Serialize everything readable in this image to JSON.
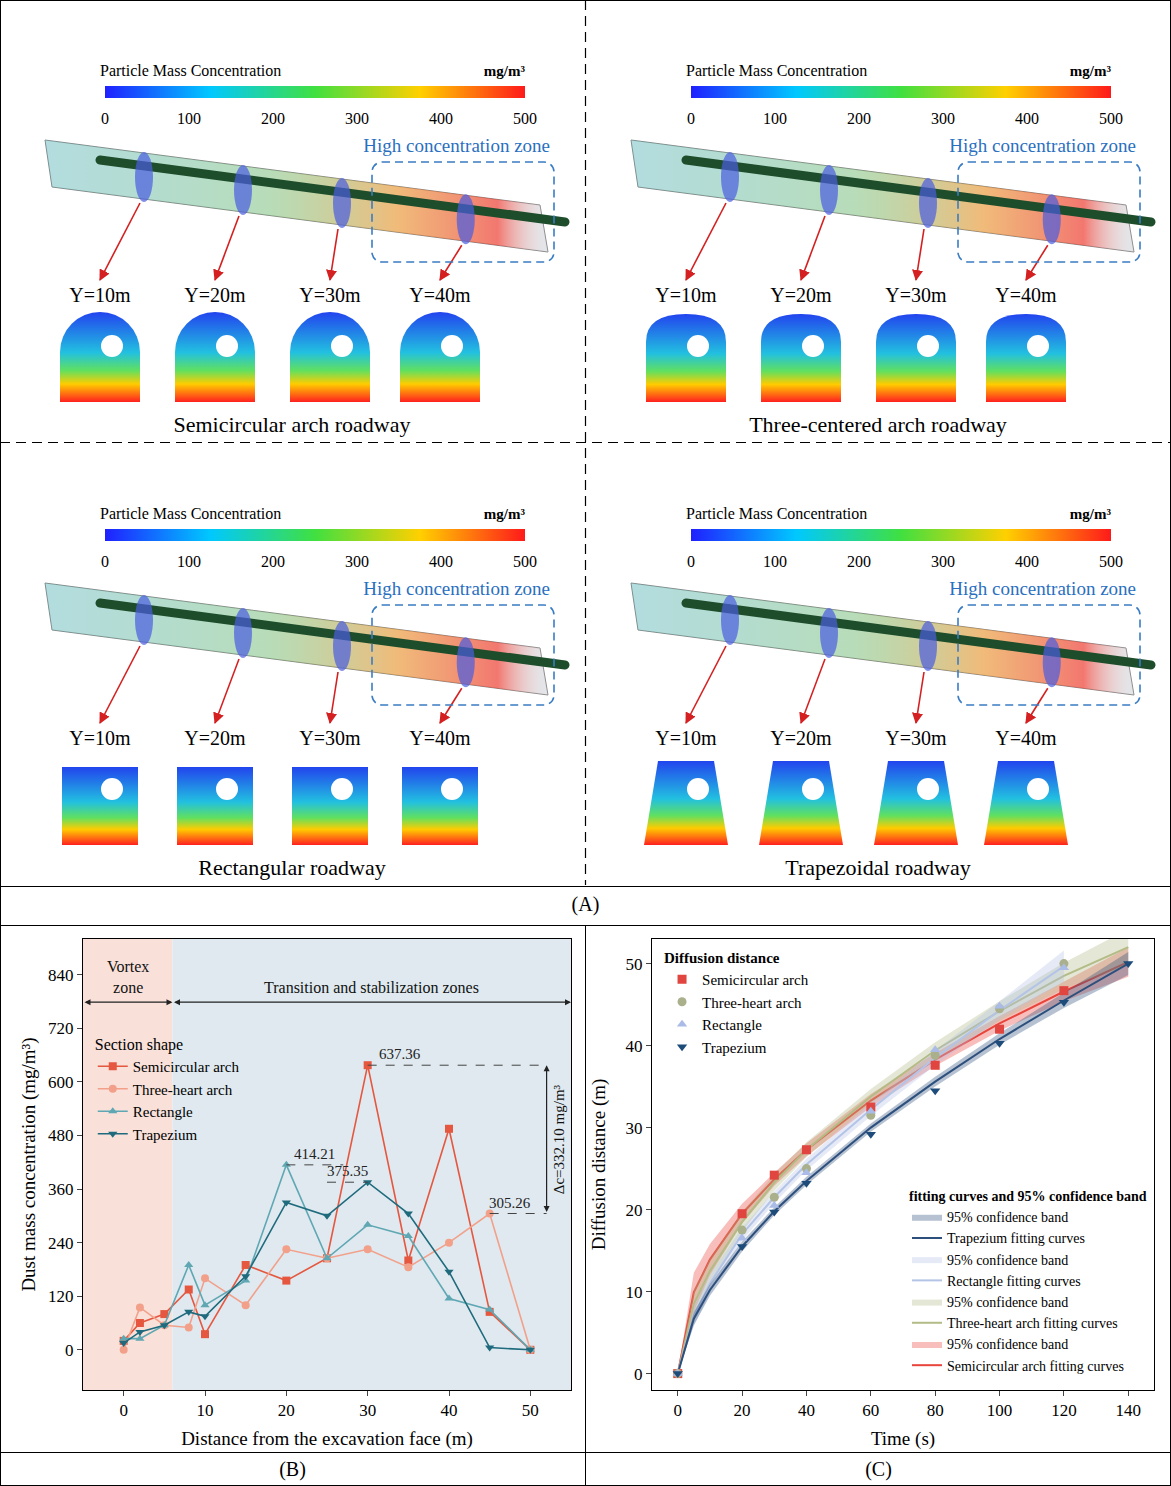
{
  "panel_A": {
    "label": "(A)",
    "subpanels": [
      {
        "title": "Semicircular arch roadway",
        "colorbar": {
          "title": "Particle Mass Concentration",
          "unit": "mg/m³",
          "range": [
            0,
            500
          ],
          "ticks": [
            0,
            100,
            200,
            300,
            400,
            500
          ]
        },
        "zone_label": "High concentration zone",
        "sections": [
          "Y=10m",
          "Y=20m",
          "Y=30m",
          "Y=40m"
        ]
      },
      {
        "title": "Three-centered arch roadway",
        "colorbar": {
          "title": "Particle Mass Concentration",
          "unit": "mg/m³",
          "range": [
            0,
            500
          ],
          "ticks": [
            0,
            100,
            200,
            300,
            400,
            500
          ]
        },
        "zone_label": "High concentration zone",
        "sections": [
          "Y=10m",
          "Y=20m",
          "Y=30m",
          "Y=40m"
        ]
      },
      {
        "title": "Rectangular roadway",
        "colorbar": {
          "title": "Particle Mass Concentration",
          "unit": "mg/m³",
          "range": [
            0,
            500
          ],
          "ticks": [
            0,
            100,
            200,
            300,
            400,
            500
          ]
        },
        "zone_label": "High concentration zone",
        "sections": [
          "Y=10m",
          "Y=20m",
          "Y=30m",
          "Y=40m"
        ]
      },
      {
        "title": "Trapezoidal roadway",
        "colorbar": {
          "title": "Particle Mass Concentration",
          "unit": "mg/m³",
          "range": [
            0,
            500
          ],
          "ticks": [
            0,
            100,
            200,
            300,
            400,
            500
          ]
        },
        "zone_label": "High concentration zone",
        "sections": [
          "Y=10m",
          "Y=20m",
          "Y=30m",
          "Y=40m"
        ]
      }
    ]
  },
  "chart_data": [
    {
      "type": "line",
      "panel_label": "(B)",
      "x_label": "Distance from the excavation face (m)",
      "y_label": "Dust mass concentration (mg/m³)",
      "x": [
        0,
        2,
        5,
        8,
        10,
        15,
        20,
        25,
        30,
        35,
        40,
        45,
        50
      ],
      "xlim": [
        -5,
        55
      ],
      "xticks": [
        0,
        10,
        20,
        30,
        40,
        50
      ],
      "ylim": [
        -90,
        920
      ],
      "yticks": [
        0,
        120,
        240,
        360,
        480,
        600,
        720,
        840
      ],
      "grid": false,
      "legend": "top left",
      "legend_title": "Section shape",
      "zones": [
        {
          "label": "Vortex zone",
          "x": [
            -5,
            6
          ],
          "color": "#f9e1da"
        },
        {
          "label": "Transition and stabilization zones",
          "x": [
            6,
            55
          ],
          "color": "#dfe9ef"
        }
      ],
      "series": [
        {
          "name": "Semicircular arch",
          "color": "#e5573f",
          "marker": "square",
          "values": [
            20,
            60,
            80,
            135,
            35,
            190,
            155,
            205,
            637.36,
            200,
            495,
            85,
            0
          ]
        },
        {
          "name": "Three-heart arch",
          "color": "#f2a08a",
          "marker": "circle",
          "values": [
            0,
            95,
            55,
            50,
            160,
            100,
            225,
            205,
            225,
            185,
            240,
            305.26,
            0
          ]
        },
        {
          "name": "Rectangle",
          "color": "#5fa7b3",
          "marker": "triangle-up",
          "values": [
            25,
            25,
            55,
            190,
            100,
            155,
            414.21,
            205,
            280,
            255,
            115,
            90,
            0
          ]
        },
        {
          "name": "Trapezium",
          "color": "#1f6b7d",
          "marker": "triangle-down",
          "values": [
            15,
            40,
            55,
            85,
            75,
            165,
            330,
            300,
            375.35,
            305,
            175,
            5,
            0
          ]
        }
      ],
      "annotations": [
        {
          "text": "637.36",
          "x": 30,
          "y": 637.36
        },
        {
          "text": "414.21",
          "x": 20,
          "y": 414.21
        },
        {
          "text": "375.35",
          "x": 30,
          "y": 375.35
        },
        {
          "text": "305.26",
          "x": 45,
          "y": 305.26
        }
      ],
      "difference": {
        "text": "Δc=332.10 mg/m³",
        "y": [
          305.26,
          637.36
        ]
      }
    },
    {
      "type": "scatter",
      "panel_label": "(C)",
      "x_label": "Time (s)",
      "y_label": "Diffusion distance (m)",
      "xlim": [
        -8,
        148
      ],
      "xticks": [
        0,
        20,
        40,
        60,
        80,
        100,
        120,
        140
      ],
      "ylim": [
        -2,
        53
      ],
      "yticks": [
        0,
        10,
        20,
        30,
        40,
        50
      ],
      "grid": false,
      "legend": "top left",
      "legend_title": "Diffusion distance",
      "fit_legend_title": "fitting curves and 95% confidence band",
      "series": [
        {
          "name": "Semicircular arch",
          "color": "#e0453f",
          "marker": "square",
          "x": [
            0,
            20,
            30,
            40,
            60,
            80,
            100,
            120
          ],
          "values": [
            0,
            19.5,
            24.2,
            27.3,
            32.5,
            37.6,
            42.0,
            46.7
          ],
          "fit": {
            "name": "Semicircular arch fitting curves",
            "color": "#e8453c",
            "band_name": "95% confidence band",
            "x": [
              0,
              5,
              10,
              20,
              30,
              40,
              60,
              80,
              100,
              120,
              140
            ],
            "values": [
              0,
              9.9,
              13.9,
              19.5,
              23.7,
              27.3,
              33.3,
              38.3,
              42.7,
              46.6,
              50.2
            ],
            "lower": [
              0,
              7.5,
              12.0,
              18.3,
              22.9,
              26.5,
              32.5,
              37.5,
              41.8,
              45.4,
              48.4
            ],
            "upper": [
              0,
              12.3,
              15.8,
              20.7,
              24.5,
              28.1,
              34.1,
              39.1,
              43.6,
              47.8,
              52.0
            ]
          }
        },
        {
          "name": "Three-heart arch",
          "color": "#a9b08b",
          "marker": "circle",
          "x": [
            0,
            20,
            30,
            40,
            60,
            80,
            100,
            120
          ],
          "values": [
            0,
            17.5,
            21.5,
            25.0,
            31.5,
            38.8,
            44.5,
            50.0
          ],
          "fit": {
            "name": "Three-heart arch fitting curves",
            "color": "#b3bb86",
            "band_name": "95% confidence band",
            "x": [
              0,
              5,
              10,
              20,
              30,
              40,
              60,
              80,
              100,
              120,
              140
            ],
            "values": [
              0,
              8.5,
              12.5,
              18.5,
              23.3,
              27.3,
              33.8,
              39.4,
              44.2,
              48.5,
              52.0
            ],
            "lower": [
              0,
              6.8,
              11.0,
              17.3,
              22.3,
              26.4,
              32.9,
              38.4,
              43.0,
              46.9,
              49.8
            ],
            "upper": [
              0,
              10.2,
              14.0,
              19.7,
              24.3,
              28.2,
              34.7,
              40.4,
              45.4,
              50.1,
              54.2
            ]
          }
        },
        {
          "name": "Rectangle",
          "color": "#a9bbe6",
          "marker": "triangle-up",
          "x": [
            0,
            20,
            30,
            40,
            60,
            80,
            100,
            120
          ],
          "values": [
            0,
            16.5,
            20.5,
            24.5,
            32.0,
            39.5,
            44.8,
            49.5
          ],
          "fit": {
            "name": "Rectangle fitting curves",
            "color": "#b4c4e6",
            "band_name": "95% confidence band",
            "x": [
              0,
              5,
              10,
              20,
              30,
              40,
              60,
              80,
              100,
              120
            ],
            "values": [
              0,
              7.0,
              11.0,
              17.0,
              21.5,
              25.5,
              32.2,
              38.5,
              44.3,
              49.7
            ],
            "lower": [
              0,
              5.8,
              9.9,
              16.2,
              20.8,
              24.8,
              31.4,
              37.6,
              43.2,
              47.8
            ],
            "upper": [
              0,
              8.2,
              12.1,
              17.8,
              22.2,
              26.2,
              33.0,
              39.4,
              45.4,
              51.6
            ]
          }
        },
        {
          "name": "Trapezium",
          "color": "#1d4b7a",
          "marker": "triangle-down",
          "x": [
            0,
            20,
            30,
            40,
            60,
            80,
            100,
            120,
            140
          ],
          "values": [
            0,
            15.5,
            19.7,
            23.2,
            29.2,
            34.5,
            40.3,
            45.3,
            50.0
          ],
          "fit": {
            "name": "Trapezium fitting curves",
            "color": "#2d4f7c",
            "band_name": "95% confidence band",
            "x": [
              0,
              5,
              10,
              20,
              30,
              40,
              60,
              80,
              100,
              120,
              140
            ],
            "values": [
              0,
              6.7,
              10.2,
              15.5,
              19.8,
              23.5,
              30.0,
              35.6,
              40.8,
              45.5,
              50.0
            ],
            "lower": [
              0,
              5.9,
              9.5,
              14.9,
              19.3,
              23.0,
              29.5,
              35.0,
              40.1,
              44.6,
              48.6
            ],
            "upper": [
              0,
              7.5,
              10.9,
              16.1,
              20.3,
              24.0,
              30.5,
              36.2,
              41.5,
              46.4,
              51.4
            ]
          }
        }
      ]
    }
  ]
}
